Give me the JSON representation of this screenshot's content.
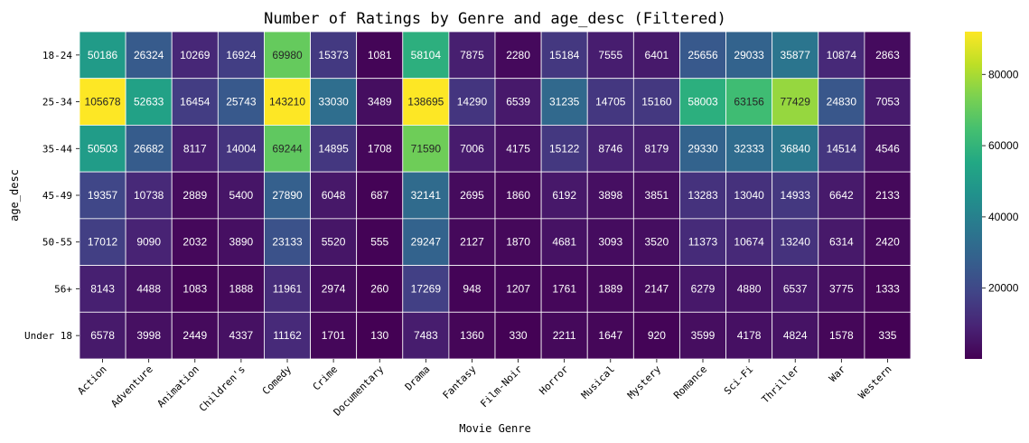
{
  "chart_data": {
    "type": "heatmap",
    "title": "Number of Ratings by Genre and age_desc (Filtered)",
    "xlabel": "Movie Genre",
    "ylabel": "age_desc",
    "x": [
      "Action",
      "Adventure",
      "Animation",
      "Children's",
      "Comedy",
      "Crime",
      "Documentary",
      "Drama",
      "Fantasy",
      "Film-Noir",
      "Horror",
      "Musical",
      "Mystery",
      "Romance",
      "Sci-Fi",
      "Thriller",
      "War",
      "Western"
    ],
    "y": [
      "18-24",
      "25-34",
      "35-44",
      "45-49",
      "50-55",
      "56+",
      "Under 18"
    ],
    "values": [
      [
        50186,
        26324,
        10269,
        16924,
        69980,
        15373,
        1081,
        58104,
        7875,
        2280,
        15184,
        7555,
        6401,
        25656,
        29033,
        35877,
        10874,
        2863
      ],
      [
        105678,
        52633,
        16454,
        25743,
        143210,
        33030,
        3489,
        138695,
        14290,
        6539,
        31235,
        14705,
        15160,
        58003,
        63156,
        77429,
        24830,
        7053
      ],
      [
        50503,
        26682,
        8117,
        14004,
        69244,
        14895,
        1708,
        71590,
        7006,
        4175,
        15122,
        8746,
        8179,
        29330,
        32333,
        36840,
        14514,
        4546
      ],
      [
        19357,
        10738,
        2889,
        5400,
        27890,
        6048,
        687,
        32141,
        2695,
        1860,
        6192,
        3898,
        3851,
        13283,
        13040,
        14933,
        6642,
        2133
      ],
      [
        17012,
        9090,
        2032,
        3890,
        23133,
        5520,
        555,
        29247,
        2127,
        1870,
        4681,
        3093,
        3520,
        11373,
        10674,
        13240,
        6314,
        2420
      ],
      [
        8143,
        4488,
        1083,
        1888,
        11961,
        2974,
        260,
        17269,
        948,
        1207,
        1761,
        1889,
        2147,
        6279,
        4880,
        6537,
        3775,
        1333
      ],
      [
        6578,
        3998,
        2449,
        4337,
        11162,
        1701,
        130,
        7483,
        1360,
        330,
        2211,
        1647,
        920,
        3599,
        4178,
        4824,
        1578,
        335
      ]
    ],
    "colormap": "viridis",
    "vmin": 130,
    "vmax": 92000,
    "colorbar_ticks": [
      20000,
      40000,
      60000,
      80000
    ]
  }
}
